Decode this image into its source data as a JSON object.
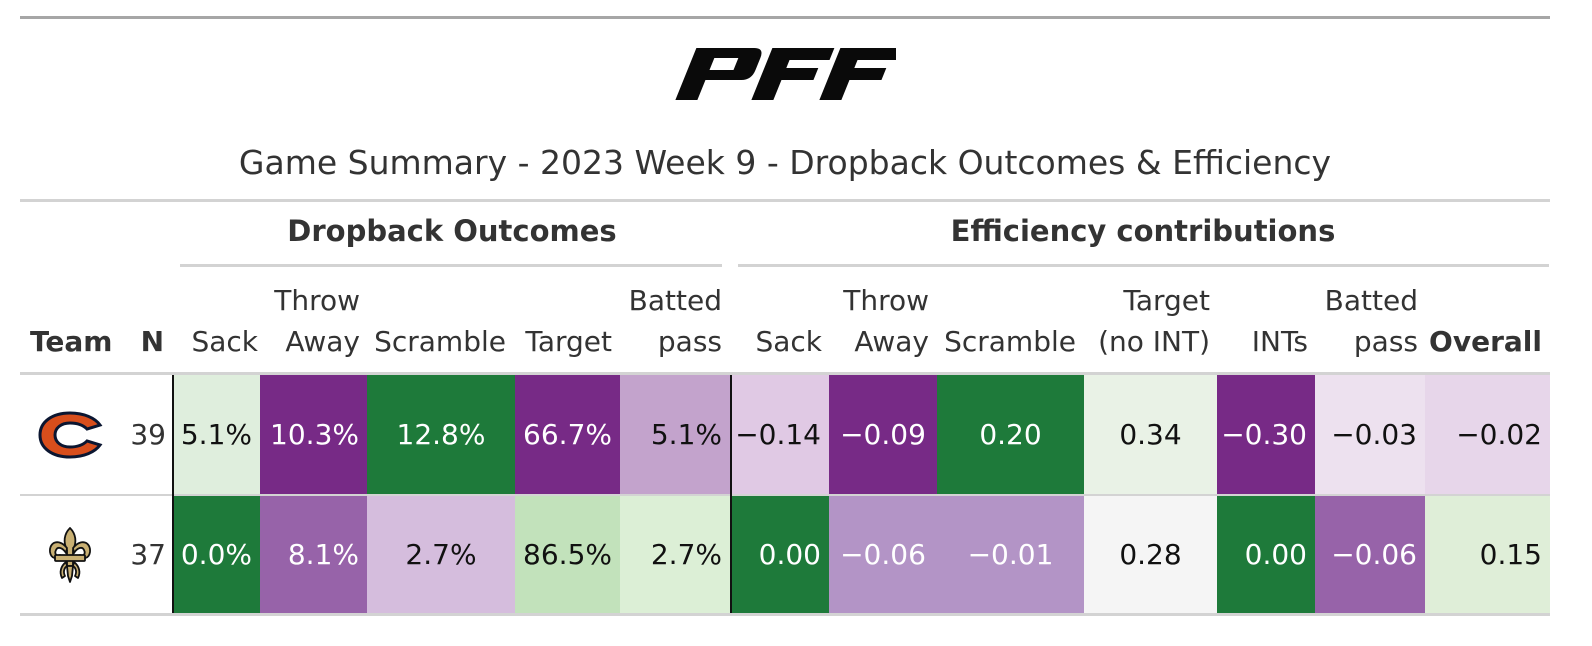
{
  "logo": {
    "text": "PFF"
  },
  "title": "Game Summary - 2023 Week 9 - Dropback Outcomes & Efficiency",
  "groups": {
    "dropback": "Dropback Outcomes",
    "efficiency": "Efficiency contributions"
  },
  "columns": {
    "team": "Team",
    "n": "N",
    "d_sack": "Sack",
    "d_throw": [
      "Throw",
      "Away"
    ],
    "d_scramble": "Scramble",
    "d_target": "Target",
    "d_batted": [
      "Batted",
      "pass"
    ],
    "e_sack": "Sack",
    "e_throw": [
      "Throw",
      "Away"
    ],
    "e_scramble": "Scramble",
    "e_target": [
      "Target",
      "(no INT)"
    ],
    "e_ints": "INTs",
    "e_batted": [
      "Batted",
      "pass"
    ],
    "e_overall": "Overall"
  },
  "rows": [
    {
      "team_icon": "bears-logo-icon",
      "n": "39",
      "d_sack": "5.1%",
      "d_throw": "10.3%",
      "d_scramble": "12.8%",
      "d_target": "66.7%",
      "d_batted": "5.1%",
      "e_sack": "−0.14",
      "e_throw": "−0.09",
      "e_scramble": "0.20",
      "e_target": "0.34",
      "e_ints": "−0.30",
      "e_batted": "−0.03",
      "e_overall": "−0.02"
    },
    {
      "team_icon": "saints-logo-icon",
      "n": "37",
      "d_sack": "0.0%",
      "d_throw": "8.1%",
      "d_scramble": "2.7%",
      "d_target": "86.5%",
      "d_batted": "2.7%",
      "e_sack": "0.00",
      "e_throw": "−0.06",
      "e_scramble": "−0.01",
      "e_target": "0.28",
      "e_ints": "0.00",
      "e_batted": "−0.06",
      "e_overall": "0.15"
    }
  ],
  "colors": {
    "dark_green": "#1e7a3a",
    "light_green": "#dfeedd",
    "mid_green": "#c2e2bb",
    "dark_purple": "#772a86",
    "mid_purple": "#9763a9",
    "light_purple": "#c3a3cc",
    "pale_purple": "#e5d4e7",
    "neutral": "#f5f5f5"
  }
}
